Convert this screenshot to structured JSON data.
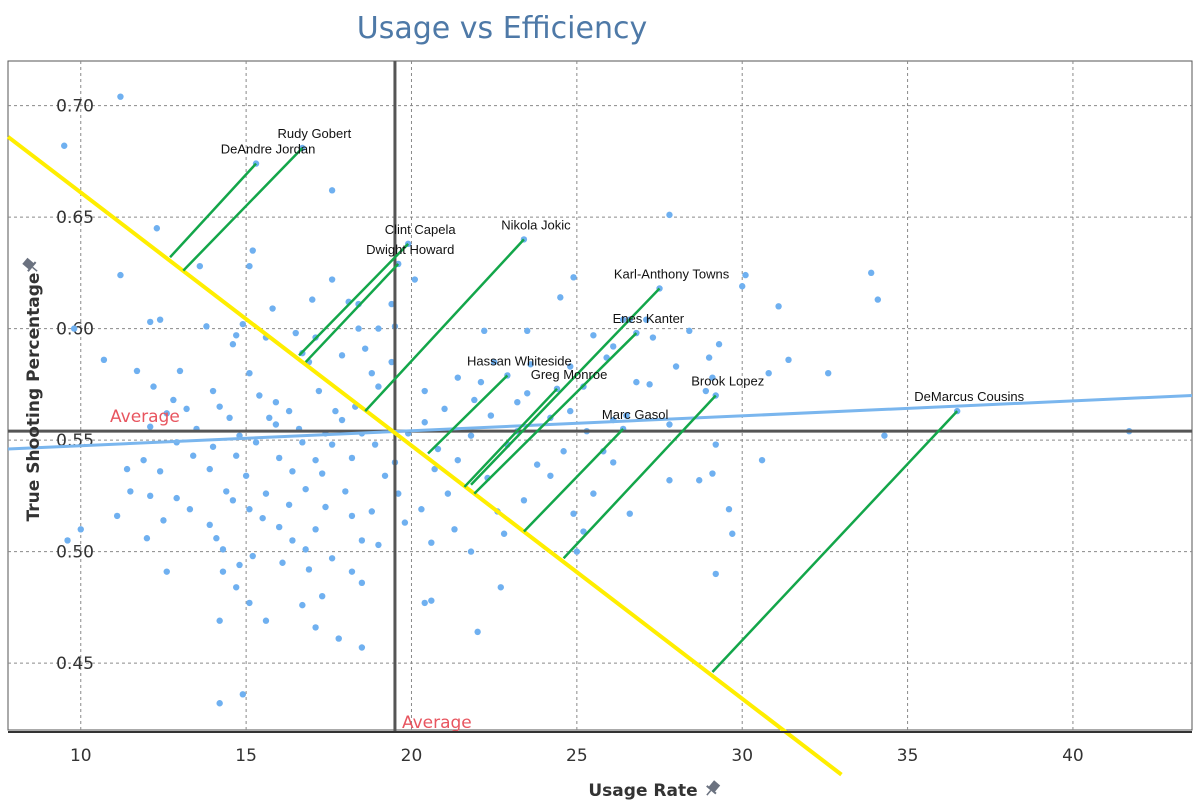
{
  "chart_data": {
    "type": "scatter",
    "title": "Usage vs Efficiency",
    "xlabel": "Usage Rate",
    "ylabel": "True Shooting Percentage",
    "xlim": [
      7.8,
      43.6
    ],
    "ylim": [
      0.42,
      0.72
    ],
    "xticks": [
      "10",
      "15",
      "20",
      "25",
      "30",
      "35",
      "40"
    ],
    "yticks": [
      "0.45",
      "0.50",
      "0.55",
      "0.60",
      "0.65",
      "0.70"
    ],
    "grid": true,
    "colors": {
      "points": "#6fb0f0",
      "trend": "#7ab6ee",
      "frontier": "#ffee00",
      "projection": "#13a64a",
      "average_line": "#555555",
      "average_label": "#e8555f",
      "title": "#4e79a7"
    },
    "averages": {
      "x": 19.5,
      "y": 0.554,
      "x_label": "Average",
      "y_label": "Average"
    },
    "trend_line": {
      "x1": 7.8,
      "y1": 0.546,
      "x2": 43.6,
      "y2": 0.57
    },
    "frontier_line": {
      "x1": 7.8,
      "y1": 0.686,
      "x2": 33.0,
      "y2": 0.4
    },
    "labeled_players": [
      {
        "name": "Rudy Gobert",
        "x": 16.7,
        "y": 0.681,
        "fx": 13.1,
        "fy": 0.626
      },
      {
        "name": "DeAndre Jordan",
        "x": 15.3,
        "y": 0.674,
        "fx": 12.7,
        "fy": 0.632
      },
      {
        "name": "Clint Capela",
        "x": 19.9,
        "y": 0.638,
        "fx": 16.6,
        "fy": 0.588
      },
      {
        "name": "Dwight Howard",
        "x": 19.6,
        "y": 0.629,
        "fx": 16.8,
        "fy": 0.585
      },
      {
        "name": "Nikola Jokic",
        "x": 23.4,
        "y": 0.64,
        "fx": 18.6,
        "fy": 0.563
      },
      {
        "name": "Karl-Anthony Towns",
        "x": 27.5,
        "y": 0.618,
        "fx": 21.8,
        "fy": 0.53
      },
      {
        "name": "Enes Kanter",
        "x": 26.8,
        "y": 0.598,
        "fx": 21.9,
        "fy": 0.526
      },
      {
        "name": "Hassan Whiteside",
        "x": 22.9,
        "y": 0.579,
        "fx": 20.5,
        "fy": 0.544
      },
      {
        "name": "Greg Monroe",
        "x": 24.4,
        "y": 0.573,
        "fx": 21.6,
        "fy": 0.529
      },
      {
        "name": "Brook Lopez",
        "x": 29.2,
        "y": 0.57,
        "fx": 24.6,
        "fy": 0.497
      },
      {
        "name": "Marc Gasol",
        "x": 26.4,
        "y": 0.555,
        "fx": 23.4,
        "fy": 0.509
      },
      {
        "name": "DeMarcus Cousins",
        "x": 36.5,
        "y": 0.563,
        "fx": 29.1,
        "fy": 0.446
      }
    ],
    "points": [
      [
        11.2,
        0.704
      ],
      [
        9.5,
        0.682
      ],
      [
        27.8,
        0.651
      ],
      [
        17.6,
        0.662
      ],
      [
        12.3,
        0.645
      ],
      [
        15.2,
        0.635
      ],
      [
        15.1,
        0.628
      ],
      [
        13.6,
        0.628
      ],
      [
        11.2,
        0.624
      ],
      [
        30.1,
        0.624
      ],
      [
        24.9,
        0.623
      ],
      [
        33.9,
        0.625
      ],
      [
        20.1,
        0.622
      ],
      [
        17.6,
        0.622
      ],
      [
        30.0,
        0.619
      ],
      [
        34.1,
        0.613
      ],
      [
        31.1,
        0.61
      ],
      [
        24.5,
        0.614
      ],
      [
        18.1,
        0.612
      ],
      [
        18.4,
        0.611
      ],
      [
        17.0,
        0.613
      ],
      [
        15.8,
        0.609
      ],
      [
        19.4,
        0.611
      ],
      [
        27.1,
        0.604
      ],
      [
        26.4,
        0.604
      ],
      [
        26.6,
        0.604
      ],
      [
        14.9,
        0.602
      ],
      [
        12.4,
        0.604
      ],
      [
        12.1,
        0.603
      ],
      [
        9.8,
        0.6
      ],
      [
        14.7,
        0.597
      ],
      [
        13.8,
        0.601
      ],
      [
        16.5,
        0.598
      ],
      [
        18.4,
        0.6
      ],
      [
        19.0,
        0.6
      ],
      [
        19.5,
        0.601
      ],
      [
        22.2,
        0.599
      ],
      [
        23.5,
        0.599
      ],
      [
        28.4,
        0.599
      ],
      [
        25.5,
        0.597
      ],
      [
        27.3,
        0.596
      ],
      [
        17.1,
        0.596
      ],
      [
        14.6,
        0.593
      ],
      [
        15.6,
        0.596
      ],
      [
        18.6,
        0.591
      ],
      [
        26.1,
        0.592
      ],
      [
        29.3,
        0.593
      ],
      [
        10.7,
        0.586
      ],
      [
        11.7,
        0.581
      ],
      [
        16.7,
        0.589
      ],
      [
        17.9,
        0.588
      ],
      [
        19.4,
        0.585
      ],
      [
        22.5,
        0.585
      ],
      [
        25.9,
        0.587
      ],
      [
        28.0,
        0.583
      ],
      [
        29.0,
        0.587
      ],
      [
        31.4,
        0.586
      ],
      [
        32.6,
        0.58
      ],
      [
        13.0,
        0.581
      ],
      [
        15.1,
        0.58
      ],
      [
        16.9,
        0.585
      ],
      [
        18.8,
        0.58
      ],
      [
        21.4,
        0.578
      ],
      [
        22.1,
        0.576
      ],
      [
        23.6,
        0.584
      ],
      [
        24.8,
        0.583
      ],
      [
        26.8,
        0.576
      ],
      [
        29.1,
        0.578
      ],
      [
        30.8,
        0.58
      ],
      [
        12.2,
        0.574
      ],
      [
        14.0,
        0.572
      ],
      [
        15.4,
        0.57
      ],
      [
        17.2,
        0.572
      ],
      [
        19.0,
        0.574
      ],
      [
        20.4,
        0.572
      ],
      [
        21.9,
        0.568
      ],
      [
        23.5,
        0.571
      ],
      [
        25.2,
        0.574
      ],
      [
        27.2,
        0.575
      ],
      [
        28.9,
        0.572
      ],
      [
        12.8,
        0.568
      ],
      [
        14.2,
        0.565
      ],
      [
        15.9,
        0.567
      ],
      [
        17.7,
        0.563
      ],
      [
        18.3,
        0.565
      ],
      [
        21.0,
        0.564
      ],
      [
        23.2,
        0.567
      ],
      [
        24.8,
        0.563
      ],
      [
        26.5,
        0.561
      ],
      [
        13.2,
        0.564
      ],
      [
        12.6,
        0.562
      ],
      [
        14.5,
        0.56
      ],
      [
        15.7,
        0.56
      ],
      [
        16.3,
        0.563
      ],
      [
        17.9,
        0.559
      ],
      [
        20.4,
        0.558
      ],
      [
        22.4,
        0.561
      ],
      [
        24.2,
        0.56
      ],
      [
        26.1,
        0.559
      ],
      [
        27.8,
        0.557
      ],
      [
        12.1,
        0.556
      ],
      [
        13.5,
        0.555
      ],
      [
        14.8,
        0.552
      ],
      [
        15.9,
        0.557
      ],
      [
        16.6,
        0.555
      ],
      [
        17.4,
        0.553
      ],
      [
        18.5,
        0.553
      ],
      [
        19.9,
        0.553
      ],
      [
        21.8,
        0.552
      ],
      [
        23.2,
        0.554
      ],
      [
        25.3,
        0.554
      ],
      [
        34.3,
        0.552
      ],
      [
        41.7,
        0.554
      ],
      [
        12.9,
        0.549
      ],
      [
        14.0,
        0.547
      ],
      [
        15.3,
        0.549
      ],
      [
        16.7,
        0.549
      ],
      [
        17.6,
        0.548
      ],
      [
        18.9,
        0.548
      ],
      [
        20.8,
        0.546
      ],
      [
        22.9,
        0.548
      ],
      [
        24.6,
        0.545
      ],
      [
        25.8,
        0.545
      ],
      [
        29.2,
        0.548
      ],
      [
        11.9,
        0.541
      ],
      [
        13.4,
        0.543
      ],
      [
        14.7,
        0.543
      ],
      [
        16.0,
        0.542
      ],
      [
        17.1,
        0.541
      ],
      [
        18.2,
        0.542
      ],
      [
        19.5,
        0.54
      ],
      [
        21.4,
        0.541
      ],
      [
        23.8,
        0.539
      ],
      [
        26.1,
        0.54
      ],
      [
        30.6,
        0.541
      ],
      [
        11.4,
        0.537
      ],
      [
        12.4,
        0.536
      ],
      [
        13.9,
        0.537
      ],
      [
        15.0,
        0.534
      ],
      [
        16.4,
        0.536
      ],
      [
        17.3,
        0.535
      ],
      [
        19.2,
        0.534
      ],
      [
        20.7,
        0.537
      ],
      [
        22.3,
        0.533
      ],
      [
        24.2,
        0.534
      ],
      [
        29.1,
        0.535
      ],
      [
        28.7,
        0.532
      ],
      [
        11.5,
        0.527
      ],
      [
        12.9,
        0.524
      ],
      [
        14.4,
        0.527
      ],
      [
        15.6,
        0.526
      ],
      [
        16.8,
        0.528
      ],
      [
        18.0,
        0.527
      ],
      [
        19.6,
        0.526
      ],
      [
        21.1,
        0.526
      ],
      [
        23.4,
        0.523
      ],
      [
        25.5,
        0.526
      ],
      [
        27.8,
        0.532
      ],
      [
        12.1,
        0.525
      ],
      [
        13.3,
        0.519
      ],
      [
        14.6,
        0.523
      ],
      [
        15.1,
        0.519
      ],
      [
        16.3,
        0.521
      ],
      [
        17.4,
        0.52
      ],
      [
        18.8,
        0.518
      ],
      [
        20.3,
        0.519
      ],
      [
        22.6,
        0.518
      ],
      [
        24.9,
        0.517
      ],
      [
        26.6,
        0.517
      ],
      [
        29.6,
        0.519
      ],
      [
        11.1,
        0.516
      ],
      [
        12.5,
        0.514
      ],
      [
        13.9,
        0.512
      ],
      [
        15.5,
        0.515
      ],
      [
        16.0,
        0.511
      ],
      [
        17.1,
        0.51
      ],
      [
        18.2,
        0.516
      ],
      [
        19.8,
        0.513
      ],
      [
        21.3,
        0.51
      ],
      [
        22.8,
        0.508
      ],
      [
        25.2,
        0.509
      ],
      [
        10.0,
        0.51
      ],
      [
        12.0,
        0.506
      ],
      [
        14.1,
        0.506
      ],
      [
        16.4,
        0.505
      ],
      [
        18.5,
        0.505
      ],
      [
        20.6,
        0.504
      ],
      [
        29.7,
        0.508
      ],
      [
        9.6,
        0.505
      ],
      [
        14.3,
        0.501
      ],
      [
        16.8,
        0.501
      ],
      [
        19.0,
        0.503
      ],
      [
        21.8,
        0.5
      ],
      [
        25.0,
        0.5
      ],
      [
        15.2,
        0.498
      ],
      [
        17.6,
        0.497
      ],
      [
        14.8,
        0.494
      ],
      [
        16.1,
        0.495
      ],
      [
        12.6,
        0.491
      ],
      [
        14.3,
        0.491
      ],
      [
        16.9,
        0.492
      ],
      [
        18.2,
        0.491
      ],
      [
        14.7,
        0.484
      ],
      [
        18.5,
        0.486
      ],
      [
        22.7,
        0.484
      ],
      [
        29.2,
        0.49
      ],
      [
        17.3,
        0.48
      ],
      [
        15.1,
        0.477
      ],
      [
        16.7,
        0.476
      ],
      [
        20.4,
        0.477
      ],
      [
        20.6,
        0.478
      ],
      [
        14.2,
        0.469
      ],
      [
        15.6,
        0.469
      ],
      [
        17.1,
        0.466
      ],
      [
        17.8,
        0.461
      ],
      [
        22.0,
        0.464
      ],
      [
        18.5,
        0.457
      ],
      [
        14.9,
        0.436
      ],
      [
        14.2,
        0.432
      ]
    ]
  }
}
